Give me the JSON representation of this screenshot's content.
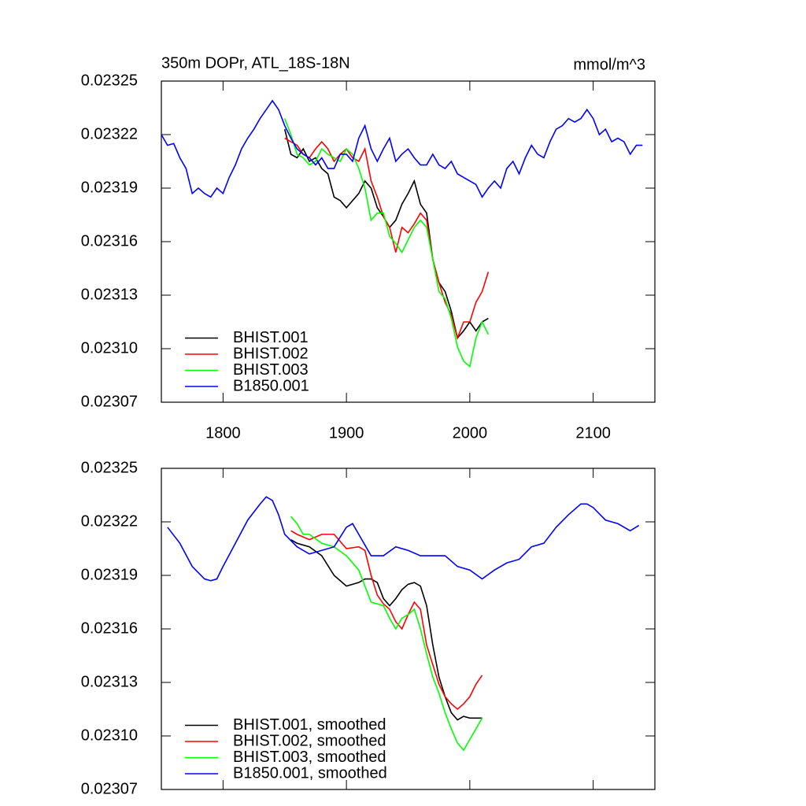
{
  "chart_data": [
    {
      "type": "line",
      "title": "350m DOPr, ATL_18S-18N",
      "units": "mmol/m^3",
      "xlim": [
        1750,
        2150
      ],
      "xticks": [
        1800,
        1900,
        2000,
        2100
      ],
      "show_xtick_labels": true,
      "ylim": [
        0.02307,
        0.02325
      ],
      "yticks": [
        0.02307,
        {
          "value": 0.0231,
          "label": "0.02310"
        },
        0.02313,
        0.02316,
        0.02319,
        0.02322,
        0.02325
      ],
      "grid": false,
      "legend": "lower left",
      "series": [
        {
          "name": "BHIST.001",
          "color": "#000000",
          "x": [
            1850,
            1855,
            1860,
            1865,
            1870,
            1875,
            1880,
            1885,
            1890,
            1895,
            1900,
            1905,
            1910,
            1915,
            1920,
            1925,
            1930,
            1935,
            1940,
            1945,
            1950,
            1955,
            1960,
            1965,
            1970,
            1975,
            1980,
            1985,
            1990,
            1995,
            2000,
            2005,
            2010,
            2015
          ],
          "values": [
            0.023223,
            0.023209,
            0.023207,
            0.023212,
            0.023205,
            0.023207,
            0.023201,
            0.023198,
            0.023185,
            0.023183,
            0.023179,
            0.023183,
            0.023187,
            0.023194,
            0.02319,
            0.023179,
            0.023174,
            0.023168,
            0.023172,
            0.023181,
            0.023187,
            0.023194,
            0.023181,
            0.023176,
            0.02315,
            0.023137,
            0.023132,
            0.023121,
            0.023106,
            0.02311,
            0.023115,
            0.02311,
            0.023115,
            0.023117
          ]
        },
        {
          "name": "BHIST.002",
          "color": "#ff0000",
          "x": [
            1850,
            1855,
            1860,
            1865,
            1870,
            1875,
            1880,
            1885,
            1890,
            1895,
            1900,
            1905,
            1910,
            1915,
            1920,
            1925,
            1930,
            1935,
            1940,
            1945,
            1950,
            1955,
            1960,
            1965,
            1970,
            1975,
            1980,
            1985,
            1990,
            1995,
            2000,
            2005,
            2010,
            2015
          ],
          "values": [
            0.023218,
            0.023216,
            0.023214,
            0.023209,
            0.023207,
            0.023212,
            0.023216,
            0.023212,
            0.023205,
            0.023209,
            0.023212,
            0.023207,
            0.023205,
            0.023212,
            0.023194,
            0.023185,
            0.023174,
            0.023168,
            0.023154,
            0.023168,
            0.023165,
            0.02317,
            0.023176,
            0.023172,
            0.02315,
            0.023137,
            0.023126,
            0.023119,
            0.023106,
            0.023115,
            0.023115,
            0.023126,
            0.023132,
            0.023143
          ]
        },
        {
          "name": "BHIST.003",
          "color": "#00ff00",
          "x": [
            1850,
            1855,
            1860,
            1865,
            1870,
            1875,
            1880,
            1885,
            1890,
            1895,
            1900,
            1905,
            1910,
            1915,
            1920,
            1925,
            1930,
            1935,
            1940,
            1945,
            1950,
            1955,
            1960,
            1965,
            1970,
            1975,
            1980,
            1985,
            1990,
            1995,
            2000,
            2005,
            2010,
            2015
          ],
          "values": [
            0.023229,
            0.02322,
            0.023209,
            0.023207,
            0.023203,
            0.023205,
            0.023212,
            0.023209,
            0.023207,
            0.023205,
            0.023212,
            0.023209,
            0.023201,
            0.02319,
            0.023172,
            0.023176,
            0.023176,
            0.023163,
            0.023159,
            0.023154,
            0.023161,
            0.023168,
            0.023172,
            0.023168,
            0.02315,
            0.023132,
            0.023128,
            0.023117,
            0.023101,
            0.023093,
            0.02309,
            0.023106,
            0.023115,
            0.023108
          ]
        },
        {
          "name": "B1850.001",
          "color": "#0000ff",
          "x": [
            1750,
            1755,
            1760,
            1765,
            1770,
            1775,
            1780,
            1785,
            1790,
            1795,
            1800,
            1805,
            1810,
            1815,
            1820,
            1825,
            1830,
            1835,
            1840,
            1845,
            1850,
            1855,
            1860,
            1865,
            1870,
            1875,
            1880,
            1885,
            1890,
            1895,
            1900,
            1905,
            1910,
            1915,
            1920,
            1925,
            1930,
            1935,
            1940,
            1945,
            1950,
            1955,
            1960,
            1965,
            1970,
            1975,
            1980,
            1985,
            1990,
            1995,
            2000,
            2005,
            2010,
            2015,
            2020,
            2025,
            2030,
            2035,
            2040,
            2045,
            2050,
            2055,
            2060,
            2065,
            2070,
            2075,
            2080,
            2085,
            2090,
            2095,
            2100,
            2105,
            2110,
            2115,
            2120,
            2125,
            2130,
            2135,
            2140
          ],
          "values": [
            0.02322,
            0.023214,
            0.023215,
            0.023207,
            0.023201,
            0.023187,
            0.02319,
            0.023187,
            0.023185,
            0.02319,
            0.023187,
            0.023196,
            0.023203,
            0.023212,
            0.023218,
            0.023223,
            0.023229,
            0.023234,
            0.023239,
            0.023234,
            0.023225,
            0.023218,
            0.023212,
            0.023209,
            0.023207,
            0.023203,
            0.023207,
            0.023201,
            0.023201,
            0.023209,
            0.023209,
            0.023205,
            0.023218,
            0.023225,
            0.023212,
            0.023205,
            0.023212,
            0.023218,
            0.023205,
            0.023209,
            0.023212,
            0.023207,
            0.023203,
            0.023203,
            0.023209,
            0.023203,
            0.023201,
            0.023205,
            0.023198,
            0.023196,
            0.023194,
            0.023192,
            0.023185,
            0.02319,
            0.023194,
            0.02319,
            0.023201,
            0.023205,
            0.023198,
            0.023207,
            0.023214,
            0.023209,
            0.023207,
            0.023216,
            0.023223,
            0.023225,
            0.023229,
            0.023227,
            0.023229,
            0.023234,
            0.023229,
            0.02322,
            0.023223,
            0.023216,
            0.023218,
            0.023216,
            0.023209,
            0.023214,
            0.023214
          ]
        }
      ]
    },
    {
      "type": "line",
      "xlim": [
        1750,
        2150
      ],
      "xticks": [
        1800,
        1900,
        2000,
        2100
      ],
      "show_xtick_labels": false,
      "ylim": [
        0.02307,
        0.02325
      ],
      "yticks": [
        0.02307,
        {
          "value": 0.0231,
          "label": "0.02310"
        },
        0.02313,
        0.02316,
        0.02319,
        0.02322,
        0.02325
      ],
      "grid": false,
      "legend": "lower left",
      "series": [
        {
          "name": "BHIST.001, smoothed",
          "color": "#000000",
          "x": [
            1855,
            1860,
            1870,
            1880,
            1890,
            1900,
            1910,
            1915,
            1920,
            1925,
            1930,
            1935,
            1940,
            1945,
            1950,
            1955,
            1960,
            1965,
            1970,
            1975,
            1980,
            1985,
            1990,
            1995,
            2000,
            2005,
            2010
          ],
          "values": [
            0.02321,
            0.023208,
            0.023206,
            0.023201,
            0.02319,
            0.023184,
            0.023186,
            0.023188,
            0.023188,
            0.023186,
            0.023177,
            0.023173,
            0.023177,
            0.023182,
            0.023185,
            0.023186,
            0.023184,
            0.023173,
            0.023151,
            0.023133,
            0.023122,
            0.023113,
            0.023109,
            0.023111,
            0.02311,
            0.02311,
            0.02311
          ]
        },
        {
          "name": "BHIST.002, smoothed",
          "color": "#ff0000",
          "x": [
            1855,
            1860,
            1870,
            1880,
            1890,
            1900,
            1910,
            1915,
            1920,
            1925,
            1930,
            1935,
            1940,
            1945,
            1950,
            1955,
            1960,
            1965,
            1970,
            1975,
            1980,
            1985,
            1990,
            1995,
            2000,
            2005,
            2010
          ],
          "values": [
            0.023215,
            0.023213,
            0.02321,
            0.023213,
            0.023213,
            0.023205,
            0.023206,
            0.023204,
            0.02319,
            0.023179,
            0.023174,
            0.023171,
            0.023164,
            0.02316,
            0.023168,
            0.023175,
            0.023171,
            0.023151,
            0.02314,
            0.023129,
            0.023122,
            0.023118,
            0.023115,
            0.023118,
            0.023122,
            0.023129,
            0.023134
          ]
        },
        {
          "name": "BHIST.003, smoothed",
          "color": "#00ff00",
          "x": [
            1855,
            1860,
            1865,
            1870,
            1880,
            1890,
            1900,
            1910,
            1915,
            1920,
            1925,
            1930,
            1935,
            1940,
            1945,
            1950,
            1955,
            1960,
            1965,
            1970,
            1975,
            1980,
            1985,
            1990,
            1995,
            2000,
            2005,
            2010
          ],
          "values": [
            0.023223,
            0.023219,
            0.023213,
            0.023213,
            0.023208,
            0.023206,
            0.023201,
            0.023193,
            0.023184,
            0.023175,
            0.023174,
            0.023173,
            0.023166,
            0.02316,
            0.023166,
            0.023168,
            0.023171,
            0.02316,
            0.023146,
            0.023133,
            0.023124,
            0.023113,
            0.023104,
            0.023096,
            0.023092,
            0.023098,
            0.023104,
            0.02311
          ]
        },
        {
          "name": "B1850.001, smoothed",
          "color": "#0000ff",
          "x": [
            1755,
            1765,
            1775,
            1785,
            1790,
            1795,
            1800,
            1810,
            1820,
            1830,
            1835,
            1840,
            1845,
            1850,
            1860,
            1870,
            1880,
            1890,
            1900,
            1905,
            1910,
            1920,
            1930,
            1940,
            1950,
            1960,
            1970,
            1980,
            1990,
            2000,
            2010,
            2020,
            2030,
            2040,
            2050,
            2060,
            2070,
            2080,
            2090,
            2095,
            2100,
            2110,
            2120,
            2130,
            2137
          ],
          "values": [
            0.023217,
            0.023208,
            0.023195,
            0.023188,
            0.023187,
            0.023188,
            0.023195,
            0.023208,
            0.023221,
            0.02323,
            0.023234,
            0.023232,
            0.023224,
            0.023213,
            0.023206,
            0.023202,
            0.023204,
            0.023206,
            0.023217,
            0.023219,
            0.023213,
            0.023201,
            0.023201,
            0.023206,
            0.023204,
            0.023201,
            0.023201,
            0.023201,
            0.023195,
            0.023193,
            0.023188,
            0.023193,
            0.023197,
            0.023199,
            0.023206,
            0.023208,
            0.023217,
            0.023224,
            0.02323,
            0.02323,
            0.023228,
            0.023221,
            0.023219,
            0.023215,
            0.023218
          ]
        }
      ]
    }
  ]
}
